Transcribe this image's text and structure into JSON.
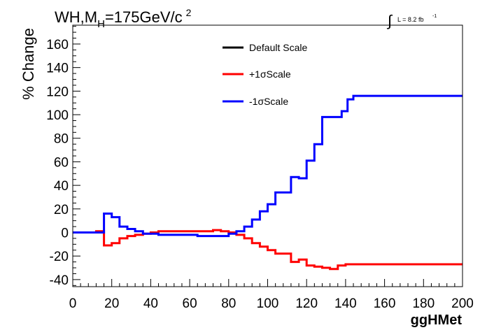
{
  "chart_data": {
    "type": "line",
    "title_prefix": "WH,M",
    "title_sub": "H",
    "title_rest": "=175GeV/c",
    "title_sup": "2",
    "lumi_symbol": "∫",
    "lumi_text": "L = 8.2 fb",
    "lumi_sup": "-1",
    "xlabel": "ggHMet",
    "ylabel": "% Change",
    "xlim": [
      0,
      200
    ],
    "ylim": [
      -46,
      176
    ],
    "x_ticks": [
      0,
      20,
      40,
      60,
      80,
      100,
      120,
      140,
      160,
      180,
      200
    ],
    "y_ticks": [
      -40,
      -20,
      0,
      20,
      40,
      60,
      80,
      100,
      120,
      140,
      160
    ],
    "legend_position": "top-center",
    "series": [
      {
        "name": "Default Scale",
        "color": "#000000",
        "steps": []
      },
      {
        "name": "+1σScale",
        "color": "#ff0000",
        "steps": [
          [
            0,
            0
          ],
          [
            12,
            1
          ],
          [
            16,
            -11
          ],
          [
            20,
            -9
          ],
          [
            24,
            -5
          ],
          [
            28,
            -3
          ],
          [
            32,
            -2
          ],
          [
            36,
            -1
          ],
          [
            40,
            0
          ],
          [
            44,
            1
          ],
          [
            48,
            1
          ],
          [
            72,
            2
          ],
          [
            76,
            1
          ],
          [
            80,
            0
          ],
          [
            84,
            -2
          ],
          [
            88,
            -5
          ],
          [
            92,
            -9
          ],
          [
            96,
            -12
          ],
          [
            100,
            -15
          ],
          [
            104,
            -18
          ],
          [
            112,
            -25
          ],
          [
            116,
            -23
          ],
          [
            120,
            -28
          ],
          [
            124,
            -29
          ],
          [
            128,
            -30
          ],
          [
            132,
            -31
          ],
          [
            136,
            -28
          ],
          [
            140,
            -27
          ],
          [
            144,
            -27
          ],
          [
            200,
            -27
          ]
        ]
      },
      {
        "name": "-1σScale",
        "color": "#0000ff",
        "steps": [
          [
            0,
            0
          ],
          [
            16,
            16
          ],
          [
            20,
            13
          ],
          [
            24,
            5
          ],
          [
            28,
            3
          ],
          [
            32,
            1
          ],
          [
            36,
            -1
          ],
          [
            44,
            -2
          ],
          [
            64,
            -3
          ],
          [
            72,
            -3
          ],
          [
            80,
            -1
          ],
          [
            84,
            1
          ],
          [
            88,
            5
          ],
          [
            92,
            11
          ],
          [
            96,
            18
          ],
          [
            100,
            24
          ],
          [
            104,
            34
          ],
          [
            112,
            47
          ],
          [
            116,
            46
          ],
          [
            120,
            61
          ],
          [
            124,
            75
          ],
          [
            128,
            98
          ],
          [
            138,
            103
          ],
          [
            141,
            113
          ],
          [
            144,
            116
          ],
          [
            200,
            116
          ]
        ]
      }
    ]
  }
}
